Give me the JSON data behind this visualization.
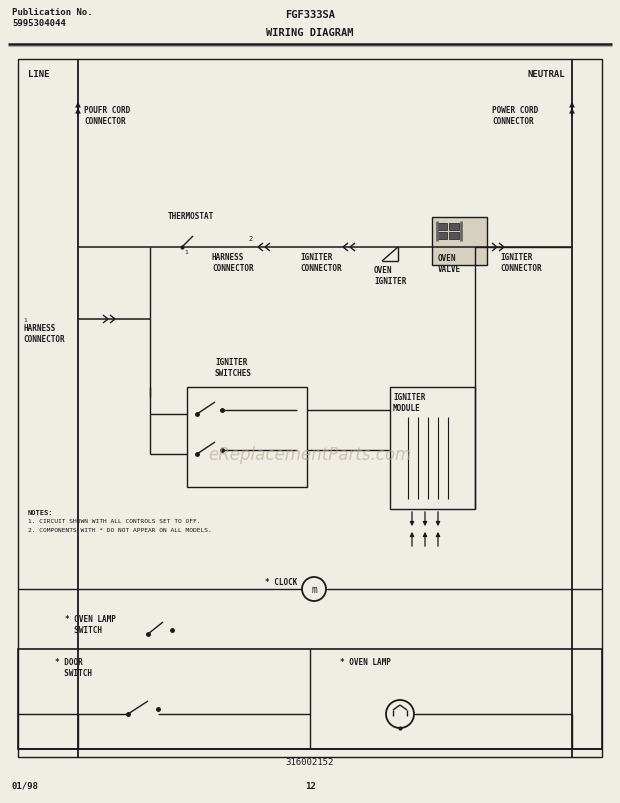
{
  "title_model": "FGF333SA",
  "title_diagram": "WIRING DIAGRAM",
  "pub_no_label": "Publication No.",
  "pub_no": "5995304044",
  "page_date": "01/98",
  "page_num": "12",
  "part_num": "316002152",
  "bg_color": "#f0ede4",
  "line_color": "#1a1a1a",
  "watermark": "eReplacementParts.com",
  "note1": "1. CIRCUIT SHOWN WITH ALL CONTROLS SET TO OFF.",
  "note2": "2. COMPONENTS WITH * DO NOT APPEAR ON ALL MODELS.",
  "notes_lbl": "NOTES:"
}
